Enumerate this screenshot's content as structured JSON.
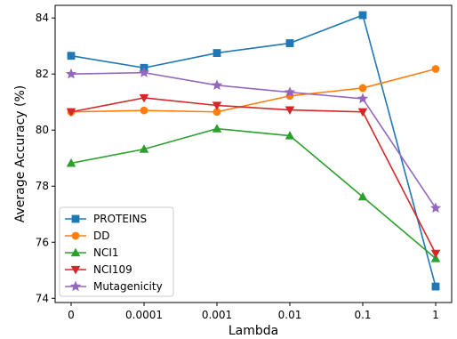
{
  "chart_data": {
    "type": "line",
    "title": "",
    "xlabel": "Lambda",
    "ylabel": "Average Accuracy (%)",
    "categories": [
      "0",
      "0.0001",
      "0.001",
      "0.01",
      "0.1",
      "1"
    ],
    "y_ticks": [
      74,
      76,
      78,
      80,
      82,
      84
    ],
    "ylim": [
      73.85,
      84.45
    ],
    "grid": false,
    "legend_position": "lower-left",
    "series": [
      {
        "name": "PROTEINS",
        "color": "#1f77b4",
        "marker": "square",
        "values": [
          82.65,
          82.22,
          82.75,
          83.1,
          84.1,
          74.42
        ]
      },
      {
        "name": "DD",
        "color": "#ff7f0e",
        "marker": "circle",
        "values": [
          80.65,
          80.7,
          80.65,
          81.22,
          81.5,
          82.18
        ]
      },
      {
        "name": "NCI1",
        "color": "#2ca02c",
        "marker": "triangle-up",
        "values": [
          78.82,
          79.32,
          80.05,
          79.8,
          77.62,
          75.42
        ]
      },
      {
        "name": "NCI109",
        "color": "#d62728",
        "marker": "triangle-down",
        "values": [
          80.65,
          81.15,
          80.88,
          80.72,
          80.65,
          75.6
        ]
      },
      {
        "name": "Mutagenicity",
        "color": "#9467bd",
        "marker": "star",
        "values": [
          82.0,
          82.05,
          81.6,
          81.35,
          81.12,
          77.22
        ]
      }
    ]
  }
}
